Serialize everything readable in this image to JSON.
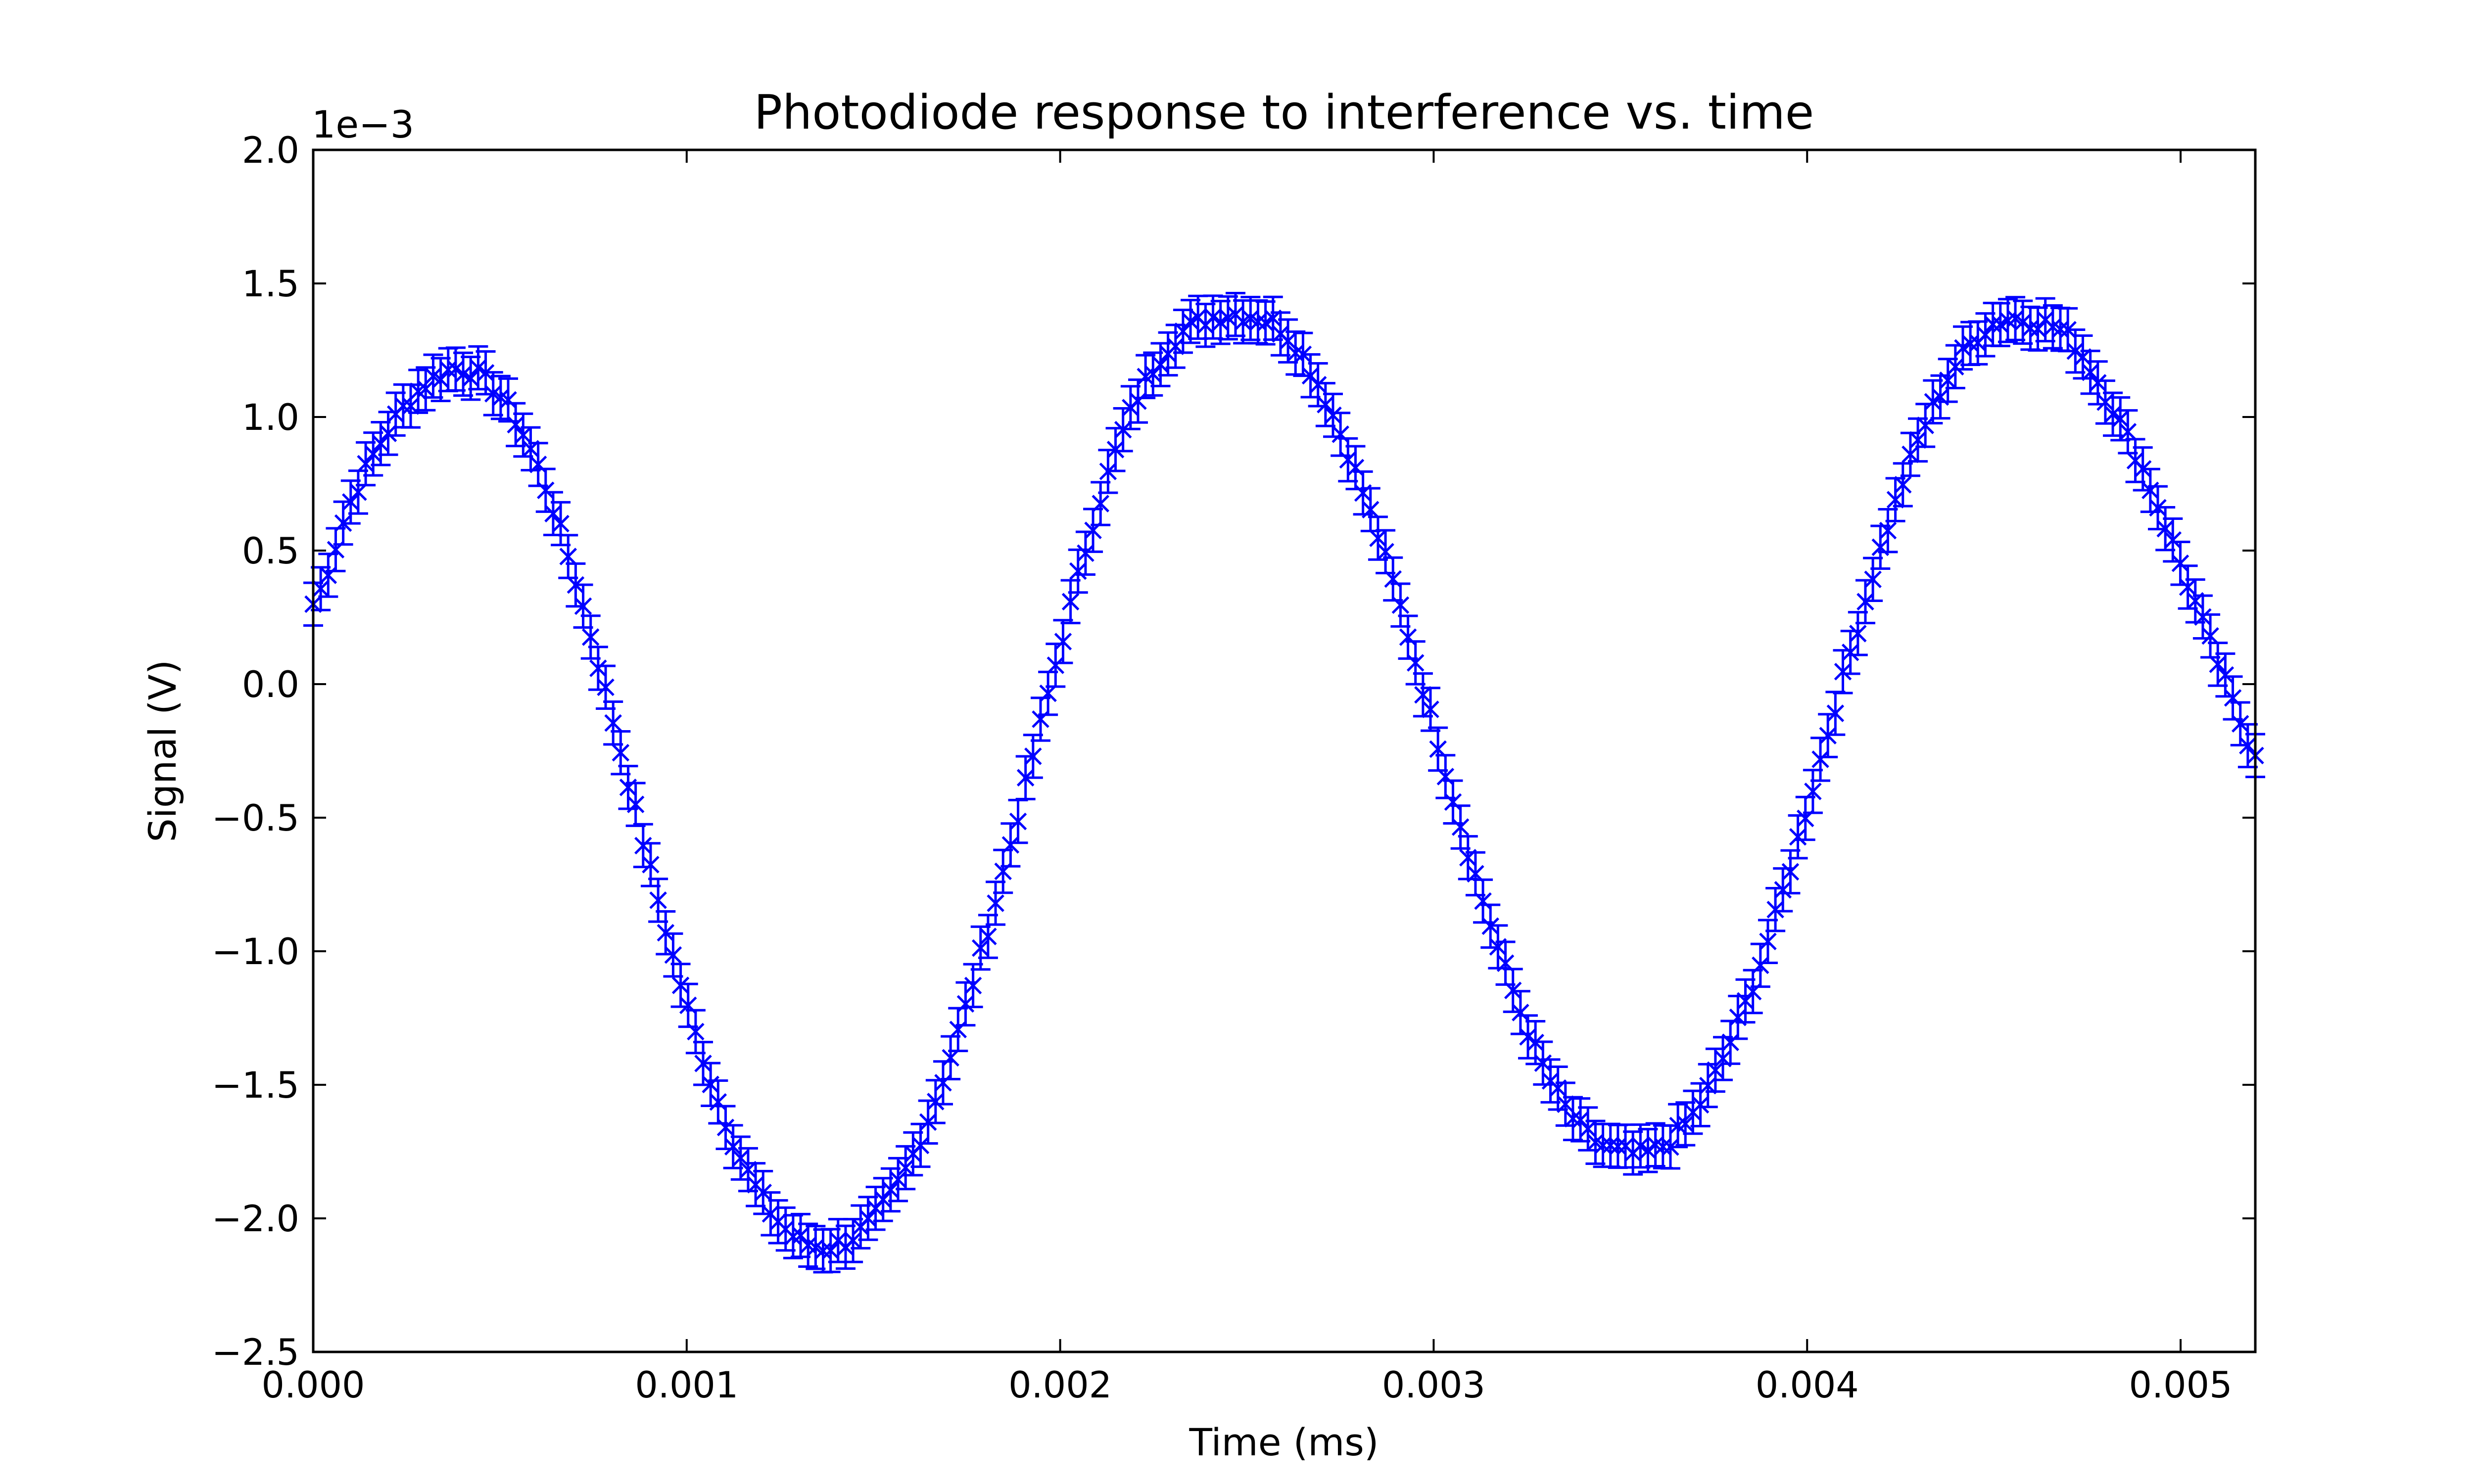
{
  "chart_data": {
    "type": "scatter",
    "title": "Photodiode response to interference vs. time",
    "xlabel": "Time (ms)",
    "ylabel": "Signal (V)",
    "y_offset_label": "1e−3",
    "xlim": [
      0.0,
      0.0052
    ],
    "ylim": [
      -2.5,
      2.0
    ],
    "y_scale_multiplier": 0.001,
    "grid": false,
    "legend": "none",
    "x_ticks": [
      {
        "value": 0.0,
        "label": "0.000"
      },
      {
        "value": 0.001,
        "label": "0.001"
      },
      {
        "value": 0.002,
        "label": "0.002"
      },
      {
        "value": 0.003,
        "label": "0.003"
      },
      {
        "value": 0.004,
        "label": "0.004"
      },
      {
        "value": 0.005,
        "label": "0.005"
      }
    ],
    "y_ticks": [
      {
        "value": 2.0,
        "label": "2.0"
      },
      {
        "value": 1.5,
        "label": "1.5"
      },
      {
        "value": 1.0,
        "label": "1.0"
      },
      {
        "value": 0.5,
        "label": "0.5"
      },
      {
        "value": 0.0,
        "label": "0.0"
      },
      {
        "value": -0.5,
        "label": "−0.5"
      },
      {
        "value": -1.0,
        "label": "−1.0"
      },
      {
        "value": -1.5,
        "label": "−1.5"
      },
      {
        "value": -2.0,
        "label": "−2.0"
      },
      {
        "value": -2.5,
        "label": "−2.5"
      }
    ],
    "series": [
      {
        "color": "#0000ff",
        "marker": "x",
        "error_bar": 0.08,
        "x": [
          0.0,
          0.0001,
          0.0002,
          0.0003,
          0.0004,
          0.0005,
          0.0006,
          0.0007,
          0.0008,
          0.0009,
          0.001,
          0.0011,
          0.0012,
          0.0013,
          0.0014,
          0.0015,
          0.0016,
          0.0017,
          0.0018,
          0.0019,
          0.002,
          0.0021,
          0.0022,
          0.0023,
          0.0024,
          0.0025,
          0.0026,
          0.0027,
          0.0028,
          0.0029,
          0.003,
          0.0031,
          0.0032,
          0.0033,
          0.0034,
          0.0035,
          0.0036,
          0.0037,
          0.0038,
          0.0039,
          0.004,
          0.0041,
          0.0042,
          0.0043,
          0.0044,
          0.0045,
          0.0046,
          0.0047,
          0.0048,
          0.0049,
          0.005,
          0.0051,
          0.0052
        ],
        "y": [
          0.3,
          0.68,
          0.95,
          1.12,
          1.18,
          1.08,
          0.82,
          0.4,
          -0.12,
          -0.68,
          -1.2,
          -1.62,
          -1.92,
          -2.08,
          -2.1,
          -2.0,
          -1.78,
          -1.42,
          -0.95,
          -0.42,
          0.14,
          0.66,
          1.05,
          1.28,
          1.37,
          1.38,
          1.32,
          1.1,
          0.76,
          0.34,
          -0.16,
          -0.66,
          -1.1,
          -1.45,
          -1.67,
          -1.75,
          -1.74,
          -1.6,
          -1.32,
          -0.94,
          -0.46,
          0.04,
          0.52,
          0.92,
          1.2,
          1.35,
          1.36,
          1.3,
          1.08,
          0.8,
          0.45,
          0.08,
          -0.25
        ]
      }
    ]
  }
}
